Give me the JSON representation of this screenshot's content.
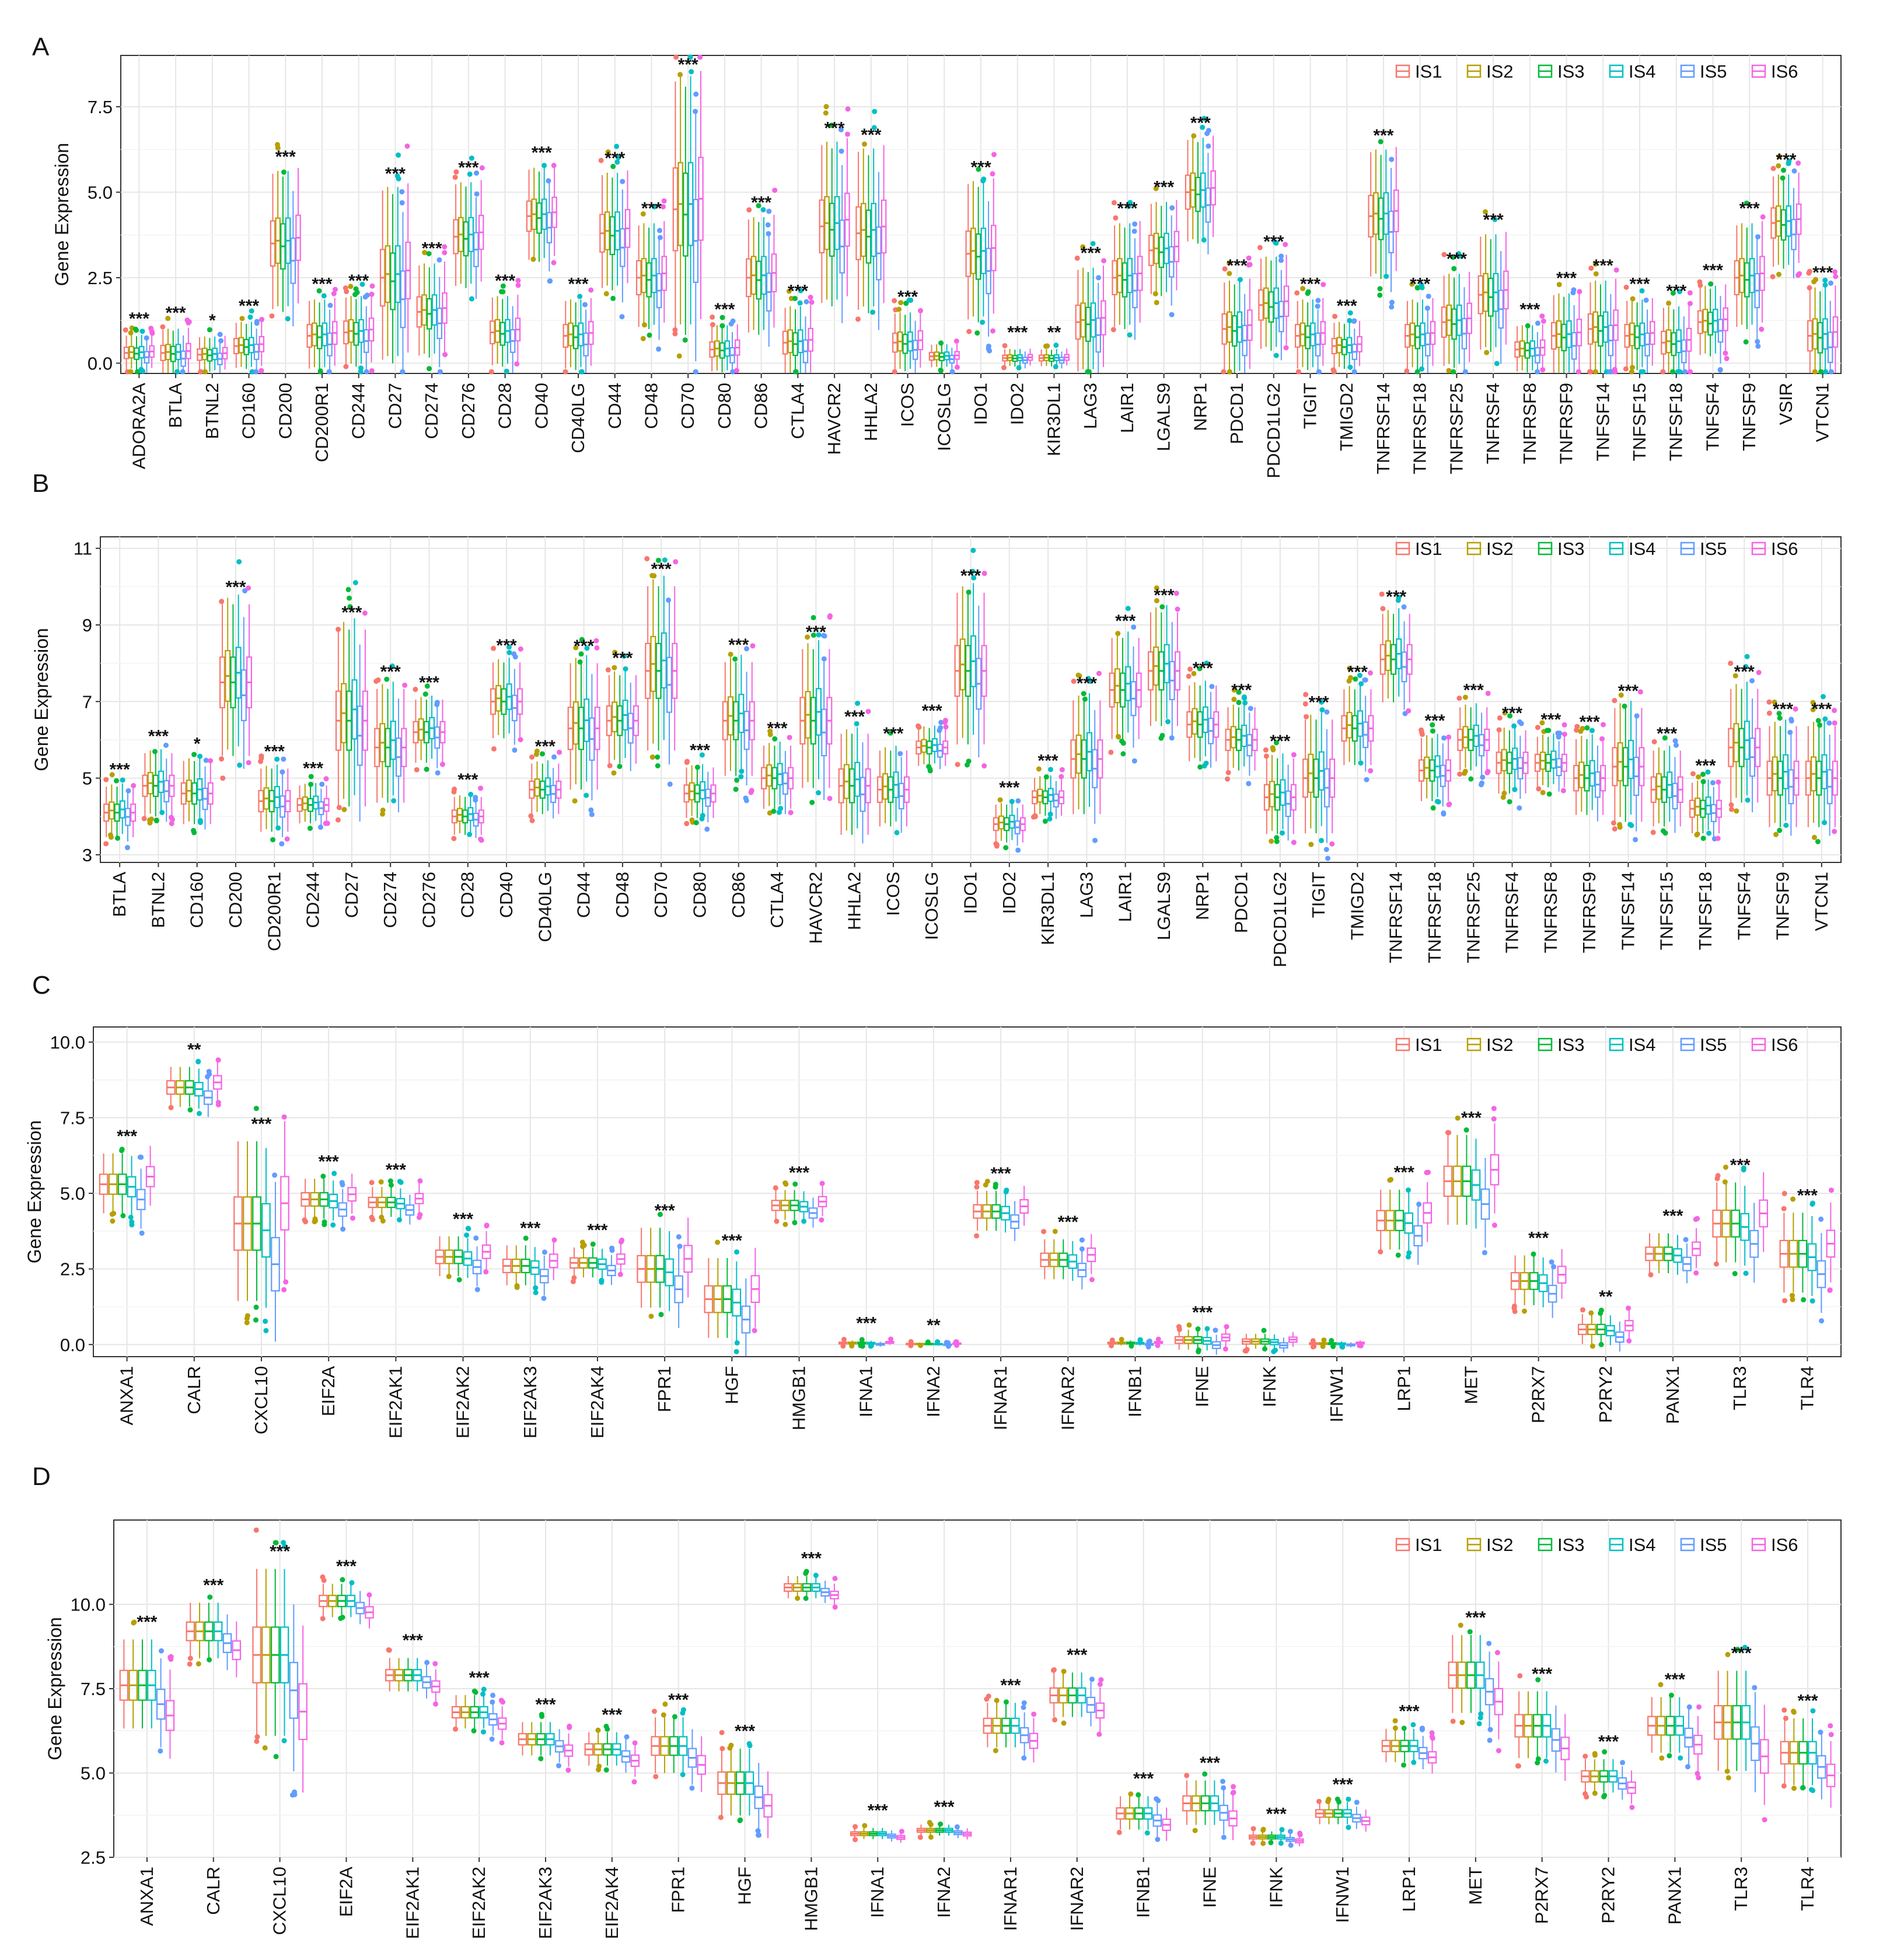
{
  "colors": {
    "IS1": "#F8766D",
    "IS2": "#B79F00",
    "IS3": "#00BA38",
    "IS4": "#00BFC4",
    "IS5": "#619CFF",
    "IS6": "#F564E3"
  },
  "chart_data": [
    {
      "panel": "A",
      "type": "box",
      "ylabel": "Gene Expression",
      "ylim": [
        -0.3,
        9.0
      ],
      "yticks": [
        0.0,
        2.5,
        5.0,
        7.5
      ],
      "ytick_labels": [
        "0.0",
        "2.5",
        "5.0",
        "7.5"
      ],
      "legend": [
        "IS1",
        "IS2",
        "IS3",
        "IS4",
        "IS5",
        "IS6"
      ],
      "legend_position": "top-right",
      "categories": [
        "ADORA2A",
        "BTLA",
        "BTNL2",
        "CD160",
        "CD200",
        "CD200R1",
        "CD244",
        "CD27",
        "CD274",
        "CD276",
        "CD28",
        "CD40",
        "CD40LG",
        "CD44",
        "CD48",
        "CD70",
        "CD80",
        "CD86",
        "CTLA4",
        "HAVCR2",
        "HHLA2",
        "ICOS",
        "ICOSLG",
        "IDO1",
        "IDO2",
        "KIR3DL1",
        "LAG3",
        "LAIR1",
        "LGALS9",
        "NRP1",
        "PDCD1",
        "PDCD1LG2",
        "TIGIT",
        "TMIGD2",
        "TNFRSF14",
        "TNFRSF18",
        "TNFRSF25",
        "TNFRSF4",
        "TNFRSF8",
        "TNFRSF9",
        "TNFSF14",
        "TNFSF15",
        "TNFSF18",
        "TNFSF4",
        "TNFSF9",
        "VSIR",
        "VTCN1"
      ],
      "significance": [
        "***",
        "***",
        "*",
        "***",
        "***",
        "***",
        "***",
        "***",
        "***",
        "***",
        "***",
        "***",
        "***",
        "***",
        "***",
        "***",
        "***",
        "***",
        "***",
        "***",
        "***",
        "***",
        "",
        "***",
        "***",
        "**",
        "***",
        "***",
        "***",
        "***",
        "***",
        "***",
        "***",
        "***",
        "***",
        "***",
        "***",
        "***",
        "***",
        "***",
        "***",
        "***",
        "***",
        "***",
        "***",
        "***",
        "***"
      ],
      "median_levels": [
        0.3,
        0.3,
        0.25,
        0.5,
        3.5,
        0.8,
        0.9,
        2.5,
        1.5,
        3.7,
        0.9,
        4.3,
        0.8,
        3.8,
        2.5,
        4.5,
        0.4,
        2.5,
        0.6,
        4.0,
        3.8,
        0.6,
        0.2,
        3.2,
        0.15,
        0.15,
        1.2,
        2.5,
        3.3,
        5.0,
        1.0,
        1.7,
        0.8,
        0.5,
        4.3,
        0.8,
        1.2,
        2.0,
        0.4,
        0.8,
        1.0,
        0.8,
        0.6,
        1.2,
        2.5,
        4.1,
        0.8
      ],
      "spread": [
        0.3,
        0.4,
        0.3,
        0.4,
        1.2,
        0.6,
        0.6,
        1.5,
        0.8,
        0.9,
        0.6,
        0.8,
        0.6,
        1.0,
        0.9,
        2.2,
        0.4,
        1.0,
        0.6,
        1.4,
        1.4,
        0.5,
        0.2,
        1.2,
        0.15,
        0.15,
        0.9,
        0.9,
        0.8,
        0.9,
        0.8,
        0.8,
        0.6,
        0.4,
        1.1,
        0.6,
        0.8,
        1.0,
        0.4,
        0.7,
        0.8,
        0.6,
        0.6,
        0.6,
        0.9,
        0.8,
        0.8
      ],
      "group_offsets": [
        0.0,
        0.05,
        -0.05,
        0.05,
        -0.3,
        0.1
      ]
    },
    {
      "panel": "B",
      "type": "box",
      "ylabel": "Gene Expression",
      "ylim": [
        2.8,
        11.3
      ],
      "yticks": [
        3,
        5,
        7,
        9,
        11
      ],
      "ytick_labels": [
        "3",
        "5",
        "7",
        "9",
        "11"
      ],
      "legend": [
        "IS1",
        "IS2",
        "IS3",
        "IS4",
        "IS5",
        "IS6"
      ],
      "legend_position": "top-right",
      "categories": [
        "BTLA",
        "BTNL2",
        "CD160",
        "CD200",
        "CD200R1",
        "CD244",
        "CD27",
        "CD274",
        "CD276",
        "CD28",
        "CD40",
        "CD40LG",
        "CD44",
        "CD48",
        "CD70",
        "CD80",
        "CD86",
        "CTLA4",
        "HAVCR2",
        "HHLA2",
        "ICOS",
        "ICOSLG",
        "IDO1",
        "IDO2",
        "KIR3DL1",
        "LAG3",
        "LAIR1",
        "LGALS9",
        "NRP1",
        "PDCD1",
        "PDCD1LG2",
        "TIGIT",
        "TMIGD2",
        "TNFRSF14",
        "TNFRSF18",
        "TNFRSF25",
        "TNFRSF4",
        "TNFRSF8",
        "TNFRSF9",
        "TNFSF14",
        "TNFSF15",
        "TNFSF18",
        "TNFSF4",
        "TNFSF9",
        "VTCN1"
      ],
      "significance": [
        "***",
        "***",
        "*",
        "***",
        "***",
        "***",
        "***",
        "***",
        "***",
        "***",
        "***",
        "***",
        "***",
        "***",
        "***",
        "***",
        "***",
        "***",
        "***",
        "***",
        "***",
        "***",
        "***",
        "***",
        "***",
        "***",
        "***",
        "***",
        "***",
        "***",
        "***",
        "***",
        "***",
        "***",
        "***",
        "***",
        "***",
        "***",
        "***",
        "***",
        "***",
        "***",
        "***",
        "***",
        "***"
      ],
      "median_levels": [
        4.1,
        4.8,
        4.6,
        7.5,
        4.4,
        4.3,
        6.5,
        5.8,
        6.2,
        4.0,
        7.0,
        4.7,
        6.3,
        6.5,
        7.8,
        4.6,
        6.5,
        5.0,
        6.5,
        4.8,
        4.7,
        5.8,
        7.8,
        3.8,
        4.5,
        5.5,
        7.3,
        7.8,
        6.4,
        6.0,
        4.5,
        5.0,
        6.3,
        8.1,
        5.2,
        6.0,
        5.4,
        5.4,
        5.0,
        5.3,
        4.7,
        4.2,
        5.8,
        5.0,
        5.0
      ],
      "spread": [
        0.4,
        0.5,
        0.5,
        1.2,
        0.5,
        0.3,
        1.4,
        0.9,
        0.5,
        0.3,
        0.6,
        0.4,
        1.0,
        0.7,
        1.3,
        0.4,
        0.9,
        0.5,
        1.1,
        0.8,
        0.6,
        0.3,
        1.2,
        0.3,
        0.3,
        0.9,
        0.8,
        0.9,
        0.6,
        0.5,
        0.6,
        0.9,
        0.6,
        0.7,
        0.5,
        0.5,
        0.5,
        0.4,
        0.6,
        0.9,
        0.6,
        0.4,
        0.9,
        0.8,
        0.8
      ],
      "group_offsets": [
        0.0,
        0.1,
        0.0,
        0.15,
        -0.2,
        0.0
      ]
    },
    {
      "panel": "C",
      "type": "box",
      "ylabel": "Gene Expression",
      "ylim": [
        -0.4,
        10.5
      ],
      "yticks": [
        0.0,
        2.5,
        5.0,
        7.5,
        10.0
      ],
      "ytick_labels": [
        "0.0",
        "2.5",
        "5.0",
        "7.5",
        "10.0"
      ],
      "legend": [
        "IS1",
        "IS2",
        "IS3",
        "IS4",
        "IS5",
        "IS6"
      ],
      "legend_position": "top-right",
      "categories": [
        "ANXA1",
        "CALR",
        "CXCL10",
        "EIF2A",
        "EIF2AK1",
        "EIF2AK2",
        "EIF2AK3",
        "EIF2AK4",
        "FPR1",
        "HGF",
        "HMGB1",
        "IFNA1",
        "IFNA2",
        "IFNAR1",
        "IFNAR2",
        "IFNB1",
        "IFNE",
        "IFNK",
        "IFNW1",
        "LRP1",
        "MET",
        "P2RX7",
        "P2RY2",
        "PANX1",
        "TLR3",
        "TLR4"
      ],
      "significance": [
        "***",
        "**",
        "***",
        "***",
        "***",
        "***",
        "***",
        "***",
        "***",
        "***",
        "***",
        "***",
        "**",
        "***",
        "***",
        "",
        "***",
        "",
        "",
        "***",
        "***",
        "***",
        "**",
        "***",
        "***",
        "***"
      ],
      "median_levels": [
        5.3,
        8.5,
        4.0,
        4.8,
        4.7,
        2.9,
        2.6,
        2.7,
        2.5,
        1.5,
        4.6,
        0.05,
        0.02,
        4.4,
        2.8,
        0.05,
        0.15,
        0.1,
        0.03,
        4.1,
        5.4,
        2.1,
        0.5,
        3.0,
        4.0,
        3.0
      ],
      "spread": [
        0.6,
        0.4,
        1.6,
        0.4,
        0.3,
        0.4,
        0.4,
        0.3,
        0.8,
        0.8,
        0.3,
        0.05,
        0.03,
        0.4,
        0.4,
        0.05,
        0.2,
        0.15,
        0.05,
        0.6,
        0.9,
        0.5,
        0.3,
        0.4,
        0.8,
        0.8
      ],
      "group_offsets": [
        0.0,
        0.0,
        0.0,
        -0.1,
        -0.6,
        0.3
      ]
    },
    {
      "panel": "D",
      "type": "box",
      "ylabel": "Gene Expression",
      "ylim": [
        2.5,
        12.5
      ],
      "yticks": [
        2.5,
        5.0,
        7.5,
        10.0
      ],
      "ytick_labels": [
        "2.5",
        "5.0",
        "7.5",
        "10.0"
      ],
      "legend": [
        "IS1",
        "IS2",
        "IS3",
        "IS4",
        "IS5",
        "IS6"
      ],
      "legend_position": "top-right",
      "categories": [
        "ANXA1",
        "CALR",
        "CXCL10",
        "EIF2A",
        "EIF2AK1",
        "EIF2AK2",
        "EIF2AK3",
        "EIF2AK4",
        "FPR1",
        "HGF",
        "HMGB1",
        "IFNA1",
        "IFNA2",
        "IFNAR1",
        "IFNAR2",
        "IFNB1",
        "IFNE",
        "IFNK",
        "IFNW1",
        "LRP1",
        "MET",
        "P2RX7",
        "P2RY2",
        "PANX1",
        "TLR3",
        "TLR4"
      ],
      "significance": [
        "***",
        "***",
        "***",
        "***",
        "***",
        "***",
        "***",
        "***",
        "***",
        "***",
        "***",
        "***",
        "***",
        "***",
        "***",
        "***",
        "***",
        "***",
        "***",
        "***",
        "***",
        "***",
        "***",
        "***",
        "***",
        "***"
      ],
      "median_levels": [
        7.6,
        9.2,
        8.5,
        10.1,
        7.9,
        6.8,
        6.0,
        5.7,
        5.8,
        4.7,
        10.5,
        3.2,
        3.3,
        6.4,
        7.3,
        3.8,
        4.1,
        3.1,
        3.8,
        5.8,
        7.9,
        6.4,
        4.9,
        6.4,
        6.5,
        5.6
      ],
      "spread": [
        0.8,
        0.5,
        1.5,
        0.3,
        0.3,
        0.3,
        0.3,
        0.3,
        0.5,
        0.6,
        0.2,
        0.1,
        0.1,
        0.4,
        0.4,
        0.3,
        0.4,
        0.1,
        0.2,
        0.3,
        0.7,
        0.6,
        0.3,
        0.5,
        0.9,
        0.6
      ],
      "group_offsets": [
        0.0,
        0.0,
        0.0,
        0.0,
        -0.5,
        -0.8
      ]
    }
  ]
}
